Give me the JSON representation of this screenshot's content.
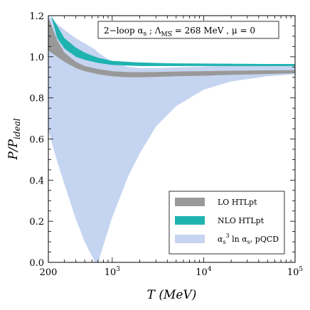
{
  "chart_data": {
    "type": "area",
    "xlabel": "T (MeV)",
    "ylabel": "P/P_ideal",
    "xscale": "log",
    "xlim": [
      200,
      100000
    ],
    "ylim": [
      0.0,
      1.2
    ],
    "grid": false,
    "x_ticks": [
      {
        "value": 200,
        "label": "200"
      },
      {
        "value": 1000,
        "label": "10",
        "sup": "3"
      },
      {
        "value": 10000,
        "label": "10",
        "sup": "4"
      },
      {
        "value": 100000,
        "label": "10",
        "sup": "5"
      }
    ],
    "y_ticks": [
      {
        "value": 0.0,
        "label": "0.0"
      },
      {
        "value": 0.2,
        "label": "0.2"
      },
      {
        "value": 0.4,
        "label": "0.4"
      },
      {
        "value": 0.6,
        "label": "0.6"
      },
      {
        "value": 0.8,
        "label": "0.8"
      },
      {
        "value": 1.0,
        "label": "1.0"
      },
      {
        "value": 1.2,
        "label": "1.2"
      }
    ],
    "annotation": {
      "text": "2−loop αs ; Λ MS = 268 MeV , μ = 0",
      "parts": {
        "prefix": "2−loop α",
        "prefix_sub": "s",
        "mid": " ; Λ",
        "lambda_sub": "MS",
        "suffix": " = 268 MeV , μ = 0"
      }
    },
    "legend_position": "lower-right",
    "series": [
      {
        "name": "αs³ ln αs, pQCD",
        "legend": {
          "main": "α",
          "sub": "s",
          "sup": "3",
          "rest": " ln α",
          "sub2": "s",
          "tail": ", pQCD"
        },
        "color": "#c5d4f0",
        "x": [
          200,
          250,
          300,
          400,
          500,
          600,
          650,
          700,
          1000,
          1500,
          2000,
          3000,
          5000,
          10000,
          20000,
          50000,
          100000
        ],
        "upper": [
          1.2,
          1.16,
          1.13,
          1.09,
          1.065,
          1.045,
          1.035,
          1.02,
          0.975,
          0.95,
          0.945,
          0.945,
          0.948,
          0.952,
          0.957,
          0.961,
          0.965
        ],
        "lower": [
          0.64,
          0.49,
          0.38,
          0.21,
          0.1,
          0.03,
          0.0,
          0.0,
          0.22,
          0.42,
          0.53,
          0.66,
          0.76,
          0.84,
          0.88,
          0.905,
          0.915
        ]
      },
      {
        "name": "LO HTLpt",
        "legend": {
          "main": "LO HTLpt"
        },
        "color": "#999999",
        "x": [
          200,
          250,
          300,
          400,
          500,
          700,
          1000,
          1500,
          2000,
          3000,
          5000,
          10000,
          20000,
          50000,
          100000
        ],
        "upper": [
          1.19,
          1.08,
          1.02,
          0.975,
          0.955,
          0.94,
          0.93,
          0.925,
          0.925,
          0.926,
          0.928,
          0.93,
          0.932,
          0.934,
          0.935
        ],
        "lower": [
          1.03,
          1.0,
          0.975,
          0.945,
          0.93,
          0.915,
          0.905,
          0.9,
          0.9,
          0.902,
          0.905,
          0.908,
          0.912,
          0.916,
          0.92
        ]
      },
      {
        "name": "NLO HTLpt",
        "legend": {
          "main": "NLO HTLpt"
        },
        "color": "#1fb3b0",
        "x": [
          215,
          250,
          300,
          400,
          500,
          700,
          1000,
          1500,
          2000,
          3000,
          5000,
          10000,
          20000,
          50000,
          100000
        ],
        "upper": [
          1.2,
          1.15,
          1.09,
          1.045,
          1.02,
          0.995,
          0.98,
          0.975,
          0.972,
          0.97,
          0.968,
          0.967,
          0.966,
          0.965,
          0.965
        ],
        "lower": [
          1.2,
          1.09,
          1.04,
          1.0,
          0.985,
          0.97,
          0.96,
          0.957,
          0.955,
          0.955,
          0.955,
          0.955,
          0.955,
          0.955,
          0.955
        ]
      }
    ]
  }
}
